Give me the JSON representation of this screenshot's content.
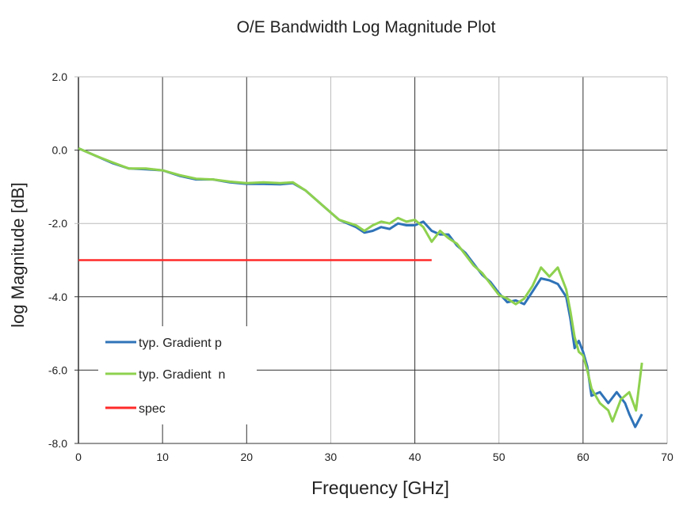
{
  "chart_data": {
    "type": "line",
    "title": "O/E Bandwidth Log Magnitude Plot",
    "xlabel": "Frequency [GHz]",
    "ylabel": "log Magnitude [dB]",
    "xlim": [
      0,
      70
    ],
    "ylim": [
      -8,
      2
    ],
    "xticks": [
      0,
      10,
      20,
      30,
      40,
      50,
      60,
      70
    ],
    "yticks": [
      2,
      0,
      -2,
      -4,
      -6,
      -8
    ],
    "ytick_labels": [
      "2.0",
      "0.0",
      "-2.0",
      "-4.0",
      "-6.0",
      "-8.0"
    ],
    "grid": true,
    "legend_placement": "bottom-left",
    "series": [
      {
        "name": "typ. Gradient p",
        "color": "#2f73b8",
        "x": [
          0,
          2,
          4,
          6,
          8,
          10,
          12,
          14,
          16,
          18,
          20,
          22,
          24,
          25.5,
          27,
          29,
          31,
          33,
          34,
          35,
          36,
          37,
          38,
          39,
          40,
          41,
          42,
          43,
          44,
          45,
          46,
          47,
          48,
          49,
          50,
          51,
          52,
          53,
          54,
          55,
          56,
          57,
          58,
          58.5,
          59,
          59.5,
          60,
          60.5,
          61,
          62,
          63,
          64,
          65,
          65.5,
          66.2,
          67
        ],
        "y": [
          0.05,
          -0.15,
          -0.35,
          -0.5,
          -0.52,
          -0.55,
          -0.7,
          -0.8,
          -0.8,
          -0.88,
          -0.92,
          -0.92,
          -0.93,
          -0.9,
          -1.1,
          -1.5,
          -1.9,
          -2.1,
          -2.25,
          -2.2,
          -2.1,
          -2.15,
          -2.0,
          -2.05,
          -2.05,
          -1.95,
          -2.2,
          -2.3,
          -2.3,
          -2.6,
          -2.8,
          -3.1,
          -3.4,
          -3.6,
          -3.9,
          -4.15,
          -4.1,
          -4.2,
          -3.85,
          -3.5,
          -3.55,
          -3.65,
          -4.0,
          -4.6,
          -5.4,
          -5.2,
          -5.5,
          -5.9,
          -6.7,
          -6.6,
          -6.9,
          -6.6,
          -6.9,
          -7.2,
          -7.55,
          -7.2
        ]
      },
      {
        "name": "typ. Gradient  n",
        "color": "#8ed14f",
        "x": [
          0,
          2,
          4,
          6,
          8,
          10,
          12,
          14,
          16,
          18,
          20,
          22,
          24,
          25.5,
          27,
          29,
          31,
          33,
          34,
          35,
          36,
          37,
          38,
          39,
          40,
          41,
          42,
          43,
          44,
          45,
          46,
          47,
          48,
          49,
          50,
          51,
          52,
          53,
          54,
          55,
          56,
          57,
          58,
          58.5,
          59,
          59.5,
          60,
          60.5,
          61,
          62,
          63,
          63.5,
          64.5,
          65.5,
          66.3,
          67
        ],
        "y": [
          0.05,
          -0.15,
          -0.33,
          -0.5,
          -0.5,
          -0.55,
          -0.68,
          -0.78,
          -0.8,
          -0.86,
          -0.9,
          -0.88,
          -0.9,
          -0.88,
          -1.1,
          -1.5,
          -1.9,
          -2.05,
          -2.2,
          -2.05,
          -1.95,
          -2.0,
          -1.85,
          -1.95,
          -1.9,
          -2.1,
          -2.5,
          -2.2,
          -2.4,
          -2.55,
          -2.85,
          -3.15,
          -3.35,
          -3.65,
          -3.95,
          -4.05,
          -4.2,
          -4.05,
          -3.7,
          -3.2,
          -3.45,
          -3.2,
          -3.8,
          -4.4,
          -5.1,
          -5.5,
          -5.6,
          -6.0,
          -6.5,
          -6.9,
          -7.1,
          -7.4,
          -6.8,
          -6.6,
          -7.1,
          -5.8
        ]
      },
      {
        "name": "spec",
        "color": "#ff2a2a",
        "x": [
          0,
          42
        ],
        "y": [
          -3,
          -3
        ]
      }
    ]
  }
}
